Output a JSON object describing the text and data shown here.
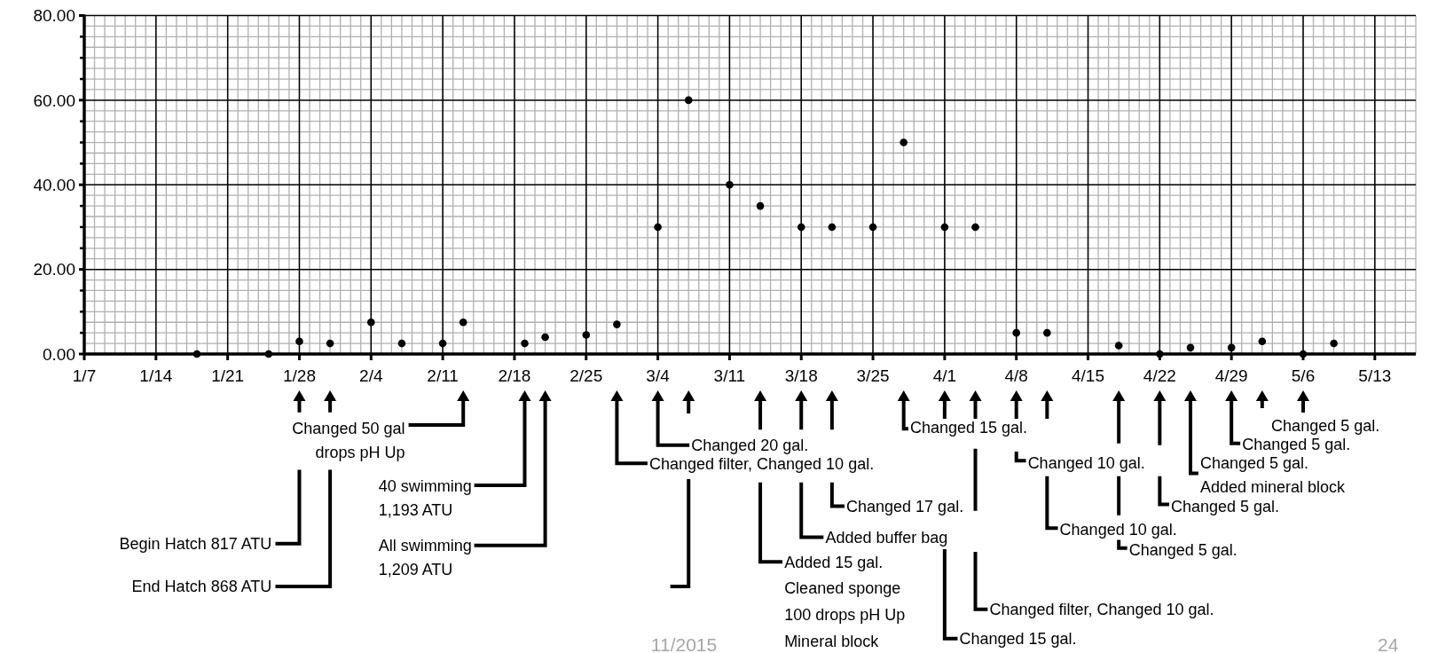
{
  "chart_data": {
    "type": "scatter",
    "marker": "circle",
    "grid": true,
    "x": [
      "--01-18",
      "--01-25",
      "--01-28",
      "--01-31",
      "--02-04",
      "--02-07",
      "--02-11",
      "--02-13",
      "--02-19",
      "--02-21",
      "--02-25",
      "--02-28",
      "--03-04",
      "--03-07",
      "--03-11",
      "--03-14",
      "--03-18",
      "--03-21",
      "--03-25",
      "--03-28",
      "--04-01",
      "--04-04",
      "--04-08",
      "--04-11",
      "--04-18",
      "--04-22",
      "--04-25",
      "--04-29",
      "--05-02",
      "--05-06",
      "--05-09"
    ],
    "series": [
      {
        "color": "#000000",
        "values": [
          0,
          0,
          3,
          2.5,
          7.5,
          2.5,
          2.5,
          7.5,
          2.5,
          4,
          4.5,
          7,
          30,
          60,
          40,
          35,
          30,
          30,
          30,
          50,
          30,
          30,
          5,
          5,
          2,
          0,
          1.5,
          1.5,
          3,
          0,
          2.5
        ]
      }
    ],
    "xlim": [
      "--01-07",
      "--05-17"
    ],
    "xticks": [
      {
        "value": "--01-07",
        "label": "1/7"
      },
      {
        "value": "--01-14",
        "label": "1/14"
      },
      {
        "value": "--01-21",
        "label": "1/21"
      },
      {
        "value": "--01-28",
        "label": "1/28"
      },
      {
        "value": "--02-04",
        "label": "2/4"
      },
      {
        "value": "--02-11",
        "label": "2/11"
      },
      {
        "value": "--02-18",
        "label": "2/18"
      },
      {
        "value": "--02-25",
        "label": "2/25"
      },
      {
        "value": "--03-04",
        "label": "3/4"
      },
      {
        "value": "--03-11",
        "label": "3/11"
      },
      {
        "value": "--03-18",
        "label": "3/18"
      },
      {
        "value": "--03-25",
        "label": "3/25"
      },
      {
        "value": "--04-01",
        "label": "4/1"
      },
      {
        "value": "--04-08",
        "label": "4/8"
      },
      {
        "value": "--04-15",
        "label": "4/15"
      },
      {
        "value": "--04-22",
        "label": "4/22"
      },
      {
        "value": "--04-29",
        "label": "4/29"
      },
      {
        "value": "--05-06",
        "label": "5/6"
      },
      {
        "value": "--05-13",
        "label": "5/13"
      }
    ],
    "ylim": [
      0,
      80
    ],
    "yticks": [
      {
        "value": 0,
        "label": "0.00"
      },
      {
        "value": 20,
        "label": "20.00"
      },
      {
        "value": 40,
        "label": "40.00"
      },
      {
        "value": 60,
        "label": "60.00"
      },
      {
        "value": 80,
        "label": "80.00"
      }
    ],
    "annotations": [
      "Begin Hatch 817 ATU",
      "End Hatch 868 ATU",
      "Changed 50 gal\ndrops pH Up",
      "40 swimming\n1,193 ATU",
      "All swimming\n1,209 ATU",
      "Changed filter, Changed 10 gal.",
      "Changed 20 gal.",
      "Added 15 gal.\nCleaned sponge\n100 drops pH Up\nMineral block",
      "Added buffer bag",
      "Changed 17 gal.",
      "Changed 15 gal.",
      "Changed 15 gal.",
      "Changed filter, Changed 10 gal.",
      "Changed 10 gal.",
      "Changed 10 gal.",
      "Changed 5 gal.",
      "Changed 5 gal.",
      "Changed 5 gal.\nAdded mineral block",
      "Changed 5 gal.",
      "Changed 5 gal.",
      "11/2015",
      "24"
    ]
  }
}
